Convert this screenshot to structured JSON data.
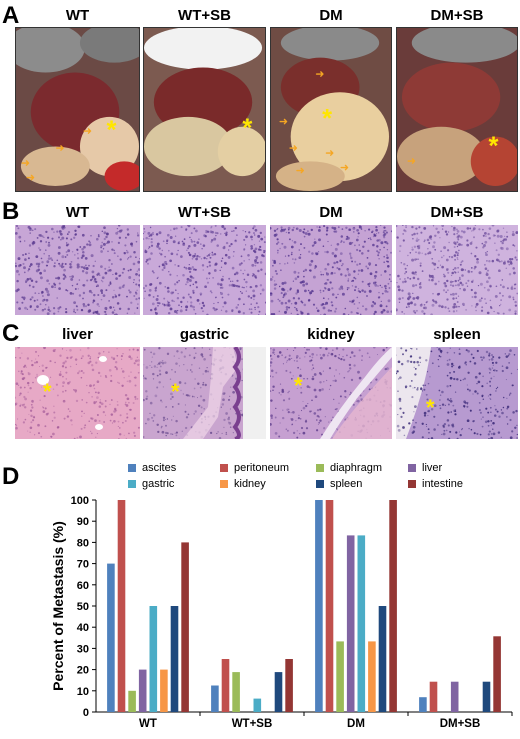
{
  "panel_a": {
    "letter": "A",
    "titles": [
      "WT",
      "WT+SB",
      "DM",
      "DM+SB"
    ]
  },
  "panel_b": {
    "letter": "B",
    "titles": [
      "WT",
      "WT+SB",
      "DM",
      "DM+SB"
    ]
  },
  "panel_c": {
    "letter": "C",
    "titles": [
      "liver",
      "gastric",
      "kidney",
      "spleen"
    ]
  },
  "panel_d": {
    "letter": "D"
  },
  "colors": {
    "ascites": "#4f81bd",
    "peritoneum": "#c0504d",
    "diaphragm": "#9bbb59",
    "liver": "#8064a2",
    "gastric": "#4bacc6",
    "kidney": "#f79646",
    "spleen": "#1f497d",
    "intestine": "#943634",
    "asterisk": "#ffe600",
    "arrow": "#f5a623"
  },
  "chart_data": {
    "type": "bar",
    "categories": [
      "WT",
      "WT+SB",
      "DM",
      "DM+SB"
    ],
    "ylabel": "Percent of Metastasis (%)",
    "xlabel": "",
    "ylim": [
      0,
      100
    ],
    "yticks": [
      0,
      10,
      20,
      30,
      40,
      50,
      60,
      70,
      80,
      90,
      100
    ],
    "grid": false,
    "legend_position": "top",
    "series": [
      {
        "name": "ascites",
        "color": "#4f81bd",
        "values": [
          70,
          12.5,
          100,
          7
        ]
      },
      {
        "name": "peritoneum",
        "color": "#c0504d",
        "values": [
          100,
          25,
          100,
          14.3
        ]
      },
      {
        "name": "diaphragm",
        "color": "#9bbb59",
        "values": [
          10,
          18.8,
          33.3,
          0
        ]
      },
      {
        "name": "liver",
        "color": "#8064a2",
        "values": [
          20,
          0,
          83.3,
          14.3
        ]
      },
      {
        "name": "gastric",
        "color": "#4bacc6",
        "values": [
          50,
          6.3,
          83.3,
          0
        ]
      },
      {
        "name": "kidney",
        "color": "#f79646",
        "values": [
          20,
          0,
          33.3,
          0
        ]
      },
      {
        "name": "spleen",
        "color": "#1f497d",
        "values": [
          50,
          18.8,
          50,
          14.3
        ]
      },
      {
        "name": "intestine",
        "color": "#943634",
        "values": [
          80,
          25,
          100,
          35.7
        ]
      }
    ]
  }
}
